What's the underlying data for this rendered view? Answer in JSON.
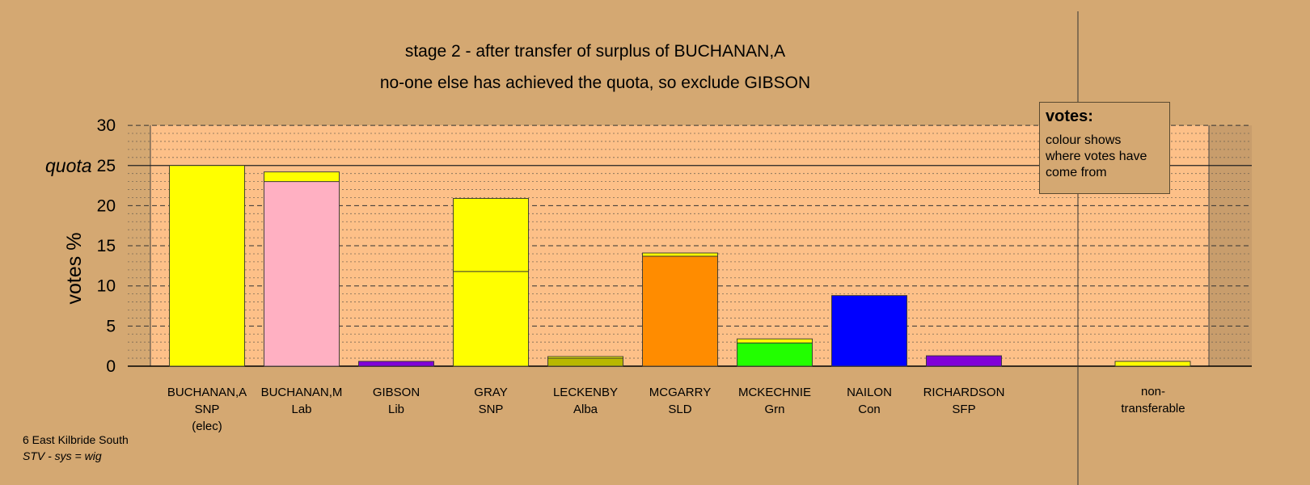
{
  "titles": {
    "line1": "stage 2 - after transfer of surplus of BUCHANAN,A",
    "line2": "no-one else has achieved the quota, so exclude GIBSON"
  },
  "legend": {
    "title": "votes:",
    "text": "colour shows where votes have come from"
  },
  "footer": {
    "line1": "6 East Kilbride South",
    "line2": "STV - sys = wig"
  },
  "colors": {
    "background": "#d4a872",
    "plot_area": "#fdc088",
    "snp": "#ffff00",
    "lab": "#ffb0c2",
    "lib": "#8000d8",
    "alba": "#b8b800",
    "sld": "#ff8c00",
    "grn": "#22ff00",
    "con": "#0000ff",
    "sfp": "#8000d8"
  },
  "chart_data": {
    "type": "bar",
    "stacked": true,
    "ylabel": "votes %",
    "ylim": [
      0,
      30
    ],
    "yticks": [
      0,
      5,
      10,
      15,
      20,
      25,
      30
    ],
    "quota": 25,
    "quota_label": "quota",
    "grid": true,
    "categories": [
      {
        "name": "BUCHANAN,A",
        "party": "SNP",
        "note": "(elec)"
      },
      {
        "name": "BUCHANAN,M",
        "party": "Lab",
        "note": ""
      },
      {
        "name": "GIBSON",
        "party": "Lib",
        "note": ""
      },
      {
        "name": "GRAY",
        "party": "SNP",
        "note": ""
      },
      {
        "name": "LECKENBY",
        "party": "Alba",
        "note": ""
      },
      {
        "name": "MCGARRY",
        "party": "SLD",
        "note": ""
      },
      {
        "name": "MCKECHNIE",
        "party": "Grn",
        "note": ""
      },
      {
        "name": "NAILON",
        "party": "Con",
        "note": ""
      },
      {
        "name": "RICHARDSON",
        "party": "SFP",
        "note": ""
      }
    ],
    "nontransferable_label": [
      "non-",
      "transferable"
    ],
    "stacks": [
      [
        {
          "value": 25.0,
          "color": "#ffff00"
        }
      ],
      [
        {
          "value": 23.0,
          "color": "#ffb0c2"
        },
        {
          "value": 1.2,
          "color": "#ffff00"
        }
      ],
      [
        {
          "value": 0.6,
          "color": "#8000d8"
        }
      ],
      [
        {
          "value": 11.8,
          "color": "#ffff00"
        },
        {
          "value": 9.1,
          "color": "#ffff00"
        }
      ],
      [
        {
          "value": 1.0,
          "color": "#b8b800"
        },
        {
          "value": 0.2,
          "color": "#ffff00"
        }
      ],
      [
        {
          "value": 13.7,
          "color": "#ff8c00"
        },
        {
          "value": 0.4,
          "color": "#ffff00"
        }
      ],
      [
        {
          "value": 2.9,
          "color": "#22ff00"
        },
        {
          "value": 0.5,
          "color": "#ffff00"
        }
      ],
      [
        {
          "value": 8.8,
          "color": "#0000ff"
        }
      ],
      [
        {
          "value": 1.3,
          "color": "#8000d8"
        }
      ]
    ],
    "nontransferable": [
      {
        "value": 0.6,
        "color": "#ffff00"
      }
    ]
  }
}
